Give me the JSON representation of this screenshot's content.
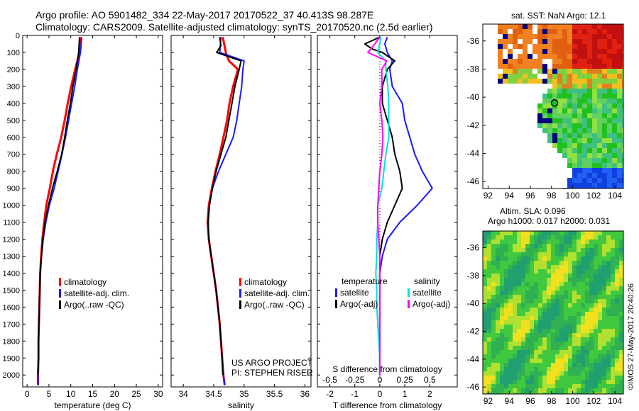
{
  "header": {
    "line1": "Argo profile: AO 5901482_334 22-May-2017 20170522_37 40.413S 98.287E",
    "line2": "Climatology: CARS2009. Satellite-adjusted climatology: synTS_20170520.nc (2.5d earlier)"
  },
  "colors": {
    "climatology": "#ff0000",
    "satellite": "#1a1aff",
    "argo": "#000000",
    "sal_satellite": "#00e0e0",
    "sal_argo": "#ff00ff"
  },
  "project": {
    "line1": "US ARGO PROJECT",
    "line2": "PI: STEPHEN RISER"
  },
  "chart_data": [
    {
      "id": "temperature",
      "type": "line",
      "xlabel": "temperature (deg C)",
      "ylabel": "",
      "xlim": [
        -1,
        31
      ],
      "ylim": [
        0,
        2070
      ],
      "xticks": [
        0,
        5,
        10,
        15,
        20,
        25,
        30
      ],
      "yticks": [
        0,
        100,
        200,
        300,
        400,
        500,
        600,
        700,
        800,
        900,
        1000,
        1100,
        1200,
        1300,
        1400,
        1500,
        1600,
        1700,
        1800,
        1900,
        2000
      ],
      "legend": [
        "climatology",
        "satellite-adj. clim.",
        "Argo(..raw -QC)"
      ],
      "series": [
        {
          "key": "climatology",
          "depth": [
            10,
            100,
            200,
            300,
            400,
            500,
            600,
            700,
            800,
            900,
            1000,
            1100,
            1200,
            1300,
            1400,
            1500,
            1600,
            1700,
            1800,
            1900,
            2000,
            2060
          ],
          "values": [
            12.3,
            12.0,
            11.0,
            10.1,
            9.3,
            8.6,
            7.8,
            6.8,
            5.9,
            5.2,
            4.4,
            3.9,
            3.5,
            3.2,
            3.0,
            2.9,
            2.8,
            2.7,
            2.6,
            2.6,
            2.5,
            2.5
          ]
        },
        {
          "key": "satellite",
          "depth": [
            10,
            100,
            200,
            300,
            400,
            500,
            600,
            700,
            800,
            900,
            1000,
            1100,
            1200,
            1300,
            1400,
            1500,
            1600,
            1700,
            1800,
            1900,
            2000,
            2060
          ],
          "values": [
            12.5,
            12.2,
            11.5,
            10.9,
            10.2,
            9.5,
            8.8,
            8.0,
            7.1,
            6.2,
            5.1,
            4.3,
            3.7,
            3.3,
            3.0,
            2.9,
            2.8,
            2.7,
            2.6,
            2.6,
            2.5,
            2.5
          ]
        },
        {
          "key": "argo",
          "depth": [
            10,
            100,
            200,
            300,
            400,
            500,
            600,
            700,
            800,
            900,
            1000,
            1100,
            1200,
            1300,
            1400,
            1500,
            1600,
            1700,
            1800,
            1900,
            2000
          ],
          "values": [
            12.0,
            11.8,
            11.2,
            10.5,
            9.9,
            9.2,
            8.6,
            7.9,
            6.9,
            5.8,
            4.9,
            4.1,
            3.6,
            3.3,
            3.0,
            2.9,
            2.8,
            2.7,
            2.6,
            2.6,
            2.5
          ]
        }
      ]
    },
    {
      "id": "salinity",
      "type": "line",
      "xlabel": "salinity",
      "ylabel": "",
      "xlim": [
        33.8,
        36.1
      ],
      "ylim": [
        0,
        2070
      ],
      "xticks": [
        34,
        34.5,
        35,
        35.5,
        36
      ],
      "legend": [
        "climatology",
        "satellite-adj. clim.",
        "Argo(..raw -QC)"
      ],
      "series": [
        {
          "key": "climatology",
          "depth": [
            10,
            100,
            150,
            200,
            300,
            400,
            500,
            600,
            700,
            800,
            900,
            1000,
            1100,
            1200,
            1300,
            1400,
            1500,
            1600,
            1700,
            1800,
            1900,
            2000,
            2060
          ],
          "values": [
            34.65,
            34.7,
            34.75,
            34.9,
            34.82,
            34.76,
            34.72,
            34.66,
            34.6,
            34.53,
            34.47,
            34.42,
            34.4,
            34.42,
            34.46,
            34.5,
            34.54,
            34.57,
            34.6,
            34.62,
            34.64,
            34.66,
            34.68
          ]
        },
        {
          "key": "satellite",
          "depth": [
            10,
            100,
            150,
            200,
            300,
            400,
            500,
            600,
            700,
            800,
            900,
            1000,
            1100,
            1200,
            1300,
            1400,
            1500,
            1600,
            1700,
            1800,
            1900,
            2000,
            2060
          ],
          "values": [
            34.62,
            34.6,
            35.0,
            34.98,
            34.96,
            34.92,
            34.88,
            34.82,
            34.7,
            34.58,
            34.48,
            34.43,
            34.41,
            34.42,
            34.46,
            34.5,
            34.54,
            34.57,
            34.6,
            34.62,
            34.64,
            34.66,
            34.68
          ]
        },
        {
          "key": "argo",
          "depth": [
            10,
            60,
            100,
            150,
            200,
            300,
            400,
            500,
            600,
            700,
            800,
            900,
            1000,
            1100,
            1200,
            1300,
            1400,
            1500,
            1600,
            1700,
            1800,
            1900,
            2000
          ],
          "values": [
            34.6,
            34.62,
            34.55,
            34.95,
            34.92,
            34.85,
            34.8,
            34.75,
            34.7,
            34.62,
            34.54,
            34.48,
            34.43,
            34.41,
            34.42,
            34.46,
            34.5,
            34.54,
            34.57,
            34.6,
            34.62,
            34.64,
            34.65
          ]
        }
      ]
    },
    {
      "id": "difference",
      "type": "line",
      "xlabel": "T difference from climatology",
      "ylabel": "",
      "xlim": [
        -2.5,
        3.1
      ],
      "ylim": [
        0,
        2070
      ],
      "xticks": [
        -2,
        -1,
        0,
        1,
        2
      ],
      "top_xlabel": "S difference from climatology",
      "top_xticks": [
        -0.5,
        -0.25,
        0,
        0.25,
        0.5
      ],
      "top_xlim": [
        -0.625,
        0.775
      ],
      "legend_titles": [
        "temperature",
        "salinity"
      ],
      "legend": [
        "satellite",
        "Argo(-adj)",
        "satellite",
        "Argo(-adj)"
      ],
      "series": [
        {
          "key": "t_satellite",
          "axis": "T",
          "depth": [
            10,
            50,
            100,
            150,
            200,
            300,
            400,
            500,
            600,
            700,
            800,
            900,
            1000,
            1100,
            1200,
            1300,
            1400,
            1500,
            1600,
            1700,
            1800,
            1900,
            2000
          ],
          "values": [
            0.3,
            0.2,
            0.3,
            0.5,
            0.4,
            0.5,
            0.9,
            1.0,
            1.2,
            1.4,
            1.7,
            2.1,
            1.5,
            0.8,
            0.3,
            0.1,
            0.0,
            0.0,
            0.0,
            0.0,
            0.0,
            0.0,
            0.0
          ]
        },
        {
          "key": "t_argo",
          "axis": "T",
          "depth": [
            10,
            50,
            80,
            100,
            150,
            200,
            300,
            400,
            500,
            600,
            700,
            800,
            900,
            1000,
            1100,
            1200,
            1300,
            1400,
            1500,
            1600,
            1700,
            1800,
            1900,
            2000
          ],
          "values": [
            0.0,
            -0.6,
            -0.3,
            0.1,
            0.6,
            0.3,
            0.1,
            0.1,
            0.3,
            0.5,
            0.6,
            0.8,
            0.9,
            0.6,
            0.3,
            0.1,
            0.0,
            0.0,
            0.0,
            0.0,
            0.0,
            0.0,
            0.0,
            0.0
          ]
        },
        {
          "key": "s_satellite",
          "axis": "S",
          "depth": [
            10,
            50,
            100,
            150,
            200,
            300,
            400,
            500,
            600,
            700,
            800,
            900,
            1000,
            1100,
            1200,
            1300,
            1400,
            1500,
            1600,
            1700,
            1800,
            1900,
            2000
          ],
          "values": [
            0.01,
            0.0,
            -0.02,
            0.06,
            0.06,
            0.08,
            0.09,
            0.09,
            0.09,
            0.06,
            0.04,
            0.02,
            -0.02,
            -0.02,
            -0.03,
            -0.03,
            -0.04,
            -0.03,
            -0.03,
            -0.02,
            -0.01,
            0.0,
            0.0
          ]
        },
        {
          "key": "s_argo",
          "axis": "S",
          "depth": [
            10,
            50,
            100,
            150,
            200,
            300,
            400,
            500,
            600,
            700,
            800,
            900,
            1000,
            1100,
            1200,
            1300,
            1400,
            1500,
            1600,
            1700,
            1800,
            1900,
            2000
          ],
          "values": [
            0.0,
            -0.05,
            -0.12,
            0.07,
            0.02,
            0.02,
            0.0,
            0.02,
            0.03,
            0.02,
            0.0,
            -0.01,
            -0.02,
            -0.02,
            -0.01,
            0.0,
            0.0,
            0.0,
            0.0,
            0.0,
            0.0,
            0.0,
            0.0
          ]
        }
      ]
    },
    {
      "id": "sst_map",
      "type": "heatmap",
      "title": "sat. SST: NaN Argo: 12.1",
      "xlim": [
        91.5,
        104.8
      ],
      "ylim": [
        -46.5,
        -34.8
      ],
      "xticks": [
        92,
        94,
        96,
        98,
        100,
        102,
        104
      ],
      "yticks": [
        -36,
        -38,
        -40,
        -42,
        -44,
        -46
      ],
      "marker": {
        "lon": 98.287,
        "lat": -40.413
      }
    },
    {
      "id": "sla_map",
      "type": "heatmap",
      "title_line1": "Altim. SLA: 0.096",
      "title_line2": "Argo h1000: 0.017 h2000: 0.031",
      "xlim": [
        91.5,
        104.8
      ],
      "ylim": [
        -46.5,
        -34.8
      ],
      "xticks": [
        92,
        94,
        96,
        98,
        100,
        102,
        104
      ],
      "yticks": [
        -36,
        -38,
        -40,
        -42,
        -44,
        -46
      ]
    }
  ],
  "timestamp": "©IMOS 27-May-2017 20:40:26"
}
